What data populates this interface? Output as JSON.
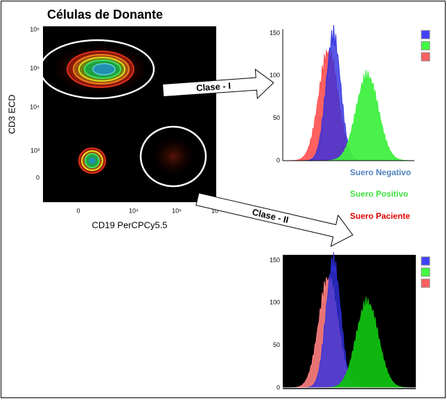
{
  "title": "Células de Donante",
  "scatter": {
    "y_label": "CD3 ECD",
    "x_label": "CD19 PerCPCy5.5",
    "y_ticks": [
      "10⁶",
      "10⁵",
      "10⁴",
      "10³",
      "0"
    ],
    "x_ticks": [
      "0",
      "10⁴",
      "10⁵",
      "10"
    ]
  },
  "arrows": [
    "Clase - I",
    "Clase - II"
  ],
  "legend": [
    "Suero Negativo",
    "Suero Positivo",
    "Suero Paciente"
  ],
  "histograms": [
    {
      "y_ticks": [
        "150",
        "100",
        "50",
        "0"
      ]
    },
    {
      "y_ticks": [
        "150",
        "100",
        "50",
        "0"
      ]
    }
  ]
}
